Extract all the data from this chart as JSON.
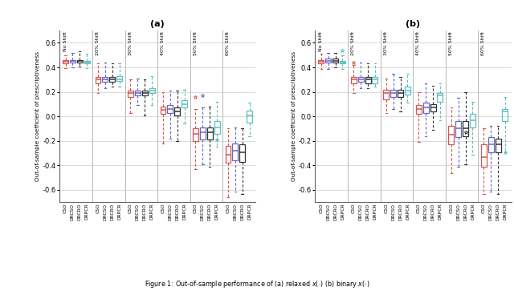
{
  "title_a": "(a)",
  "title_b": "(b)",
  "ylabel": "Out-of-sample coefficient of prescriptiveness",
  "caption": "Figure 1: Out-of-sample performance of (a) relaxed $x(\\cdot)$ (b) binary $x(\\cdot)$",
  "groups": [
    "No Shift",
    "20% Shift",
    "30% Shift",
    "40% Shift",
    "50% Shift",
    "60% Shift"
  ],
  "methods": [
    "CSO",
    "DRCSO",
    "DRCRO",
    "DRPCR"
  ],
  "colors": [
    "#d9534f",
    "#6666cc",
    "#333333",
    "#5bc0c0"
  ],
  "ylim_a": [
    -0.7,
    0.7
  ],
  "ylim_b": [
    -0.7,
    0.7
  ],
  "yticks": [
    -0.6,
    -0.4,
    -0.2,
    0.0,
    0.2,
    0.4,
    0.6
  ],
  "panel_a": [
    [
      {
        "q1": 0.43,
        "med": 0.445,
        "q3": 0.46,
        "whislo": 0.395,
        "whishi": 0.5,
        "fliers": []
      },
      {
        "q1": 0.44,
        "med": 0.45,
        "q3": 0.46,
        "whislo": 0.4,
        "whishi": 0.52,
        "fliers": []
      },
      {
        "q1": 0.44,
        "med": 0.45,
        "q3": 0.46,
        "whislo": 0.405,
        "whishi": 0.53,
        "fliers": []
      },
      {
        "q1": 0.43,
        "med": 0.44,
        "q3": 0.455,
        "whislo": 0.395,
        "whishi": 0.51,
        "fliers": []
      }
    ],
    [
      {
        "q1": 0.27,
        "med": 0.3,
        "q3": 0.32,
        "whislo": 0.19,
        "whishi": 0.43,
        "fliers": []
      },
      {
        "q1": 0.28,
        "med": 0.3,
        "q3": 0.32,
        "whislo": 0.23,
        "whishi": 0.44,
        "fliers": []
      },
      {
        "q1": 0.28,
        "med": 0.3,
        "q3": 0.32,
        "whislo": 0.24,
        "whishi": 0.43,
        "fliers": []
      },
      {
        "q1": 0.29,
        "med": 0.3,
        "q3": 0.33,
        "whislo": 0.24,
        "whishi": 0.43,
        "fliers": []
      }
    ],
    [
      {
        "q1": 0.16,
        "med": 0.19,
        "q3": 0.21,
        "whislo": 0.03,
        "whishi": 0.3,
        "fliers": []
      },
      {
        "q1": 0.17,
        "med": 0.19,
        "q3": 0.21,
        "whislo": 0.09,
        "whishi": 0.31,
        "fliers": []
      },
      {
        "q1": 0.17,
        "med": 0.19,
        "q3": 0.21,
        "whislo": 0.01,
        "whishi": 0.3,
        "fliers": []
      },
      {
        "q1": 0.19,
        "med": 0.21,
        "q3": 0.23,
        "whislo": 0.09,
        "whishi": 0.33,
        "fliers": []
      }
    ],
    [
      {
        "q1": 0.02,
        "med": 0.055,
        "q3": 0.08,
        "whislo": -0.22,
        "whishi": 0.2,
        "fliers": []
      },
      {
        "q1": 0.03,
        "med": 0.06,
        "q3": 0.09,
        "whislo": -0.18,
        "whishi": 0.21,
        "fliers": []
      },
      {
        "q1": 0.01,
        "med": 0.04,
        "q3": 0.07,
        "whislo": -0.2,
        "whishi": 0.21,
        "fliers": []
      },
      {
        "q1": 0.07,
        "med": 0.1,
        "q3": 0.13,
        "whislo": -0.06,
        "whishi": 0.22,
        "fliers": []
      }
    ],
    [
      {
        "q1": -0.2,
        "med": -0.14,
        "q3": -0.1,
        "whislo": -0.43,
        "whishi": 0.06,
        "fliers": [
          0.16
        ]
      },
      {
        "q1": -0.19,
        "med": -0.13,
        "q3": -0.09,
        "whislo": -0.39,
        "whishi": 0.07,
        "fliers": [
          0.17
        ]
      },
      {
        "q1": -0.19,
        "med": -0.13,
        "q3": -0.09,
        "whislo": -0.41,
        "whishi": 0.08,
        "fliers": []
      },
      {
        "q1": -0.14,
        "med": -0.09,
        "q3": -0.04,
        "whislo": -0.25,
        "whishi": 0.12,
        "fliers": [
          -0.19
        ]
      }
    ],
    [
      {
        "q1": -0.38,
        "med": -0.31,
        "q3": -0.24,
        "whislo": -0.66,
        "whishi": -0.1,
        "fliers": []
      },
      {
        "q1": -0.36,
        "med": -0.28,
        "q3": -0.22,
        "whislo": -0.61,
        "whishi": -0.09,
        "fliers": []
      },
      {
        "q1": -0.37,
        "med": -0.29,
        "q3": -0.23,
        "whislo": -0.63,
        "whishi": -0.1,
        "fliers": []
      },
      {
        "q1": -0.05,
        "med": 0.01,
        "q3": 0.05,
        "whislo": -0.16,
        "whishi": 0.11,
        "fliers": []
      }
    ]
  ],
  "panel_b": [
    [
      {
        "q1": 0.43,
        "med": 0.445,
        "q3": 0.46,
        "whislo": 0.385,
        "whishi": 0.51,
        "fliers": []
      },
      {
        "q1": 0.44,
        "med": 0.45,
        "q3": 0.47,
        "whislo": 0.39,
        "whishi": 0.52,
        "fliers": []
      },
      {
        "q1": 0.44,
        "med": 0.45,
        "q3": 0.47,
        "whislo": 0.4,
        "whishi": 0.52,
        "fliers": []
      },
      {
        "q1": 0.43,
        "med": 0.44,
        "q3": 0.455,
        "whislo": 0.39,
        "whishi": 0.5,
        "fliers": [
          0.535
        ]
      }
    ],
    [
      {
        "q1": 0.27,
        "med": 0.3,
        "q3": 0.32,
        "whislo": 0.19,
        "whishi": 0.42,
        "fliers": [
          0.44
        ]
      },
      {
        "q1": 0.28,
        "med": 0.3,
        "q3": 0.32,
        "whislo": 0.23,
        "whishi": 0.44,
        "fliers": []
      },
      {
        "q1": 0.27,
        "med": 0.3,
        "q3": 0.32,
        "whislo": 0.23,
        "whishi": 0.43,
        "fliers": []
      },
      {
        "q1": 0.27,
        "med": 0.3,
        "q3": 0.32,
        "whislo": 0.24,
        "whishi": 0.43,
        "fliers": []
      }
    ],
    [
      {
        "q1": 0.14,
        "med": 0.19,
        "q3": 0.22,
        "whislo": 0.03,
        "whishi": 0.31,
        "fliers": []
      },
      {
        "q1": 0.16,
        "med": 0.19,
        "q3": 0.22,
        "whislo": 0.06,
        "whishi": 0.35,
        "fliers": []
      },
      {
        "q1": 0.16,
        "med": 0.19,
        "q3": 0.22,
        "whislo": 0.04,
        "whishi": 0.32,
        "fliers": []
      },
      {
        "q1": 0.18,
        "med": 0.21,
        "q3": 0.24,
        "whislo": 0.11,
        "whishi": 0.35,
        "fliers": []
      }
    ],
    [
      {
        "q1": 0.02,
        "med": 0.06,
        "q3": 0.09,
        "whislo": -0.21,
        "whishi": 0.2,
        "fliers": []
      },
      {
        "q1": 0.03,
        "med": 0.07,
        "q3": 0.11,
        "whislo": -0.16,
        "whishi": 0.27,
        "fliers": []
      },
      {
        "q1": 0.04,
        "med": 0.07,
        "q3": 0.1,
        "whislo": -0.11,
        "whishi": 0.25,
        "fliers": []
      },
      {
        "q1": 0.12,
        "med": 0.17,
        "q3": 0.19,
        "whislo": -0.03,
        "whishi": 0.27,
        "fliers": []
      }
    ],
    [
      {
        "q1": -0.23,
        "med": -0.15,
        "q3": -0.08,
        "whislo": -0.46,
        "whishi": 0.07,
        "fliers": []
      },
      {
        "q1": -0.17,
        "med": -0.1,
        "q3": -0.04,
        "whislo": -0.41,
        "whishi": 0.15,
        "fliers": []
      },
      {
        "q1": -0.16,
        "med": -0.1,
        "q3": -0.04,
        "whislo": -0.39,
        "whishi": 0.2,
        "fliers": [
          -0.13
        ]
      },
      {
        "q1": -0.09,
        "med": -0.03,
        "q3": 0.02,
        "whislo": -0.31,
        "whishi": 0.12,
        "fliers": []
      }
    ],
    [
      {
        "q1": -0.41,
        "med": -0.33,
        "q3": -0.23,
        "whislo": -0.63,
        "whishi": -0.1,
        "fliers": []
      },
      {
        "q1": -0.29,
        "med": -0.23,
        "q3": -0.17,
        "whislo": -0.61,
        "whishi": -0.08,
        "fliers": []
      },
      {
        "q1": -0.29,
        "med": -0.23,
        "q3": -0.18,
        "whislo": -0.63,
        "whishi": -0.08,
        "fliers": []
      },
      {
        "q1": -0.04,
        "med": 0.04,
        "q3": 0.06,
        "whislo": -0.29,
        "whishi": 0.16,
        "fliers": [
          -0.29
        ]
      }
    ]
  ]
}
